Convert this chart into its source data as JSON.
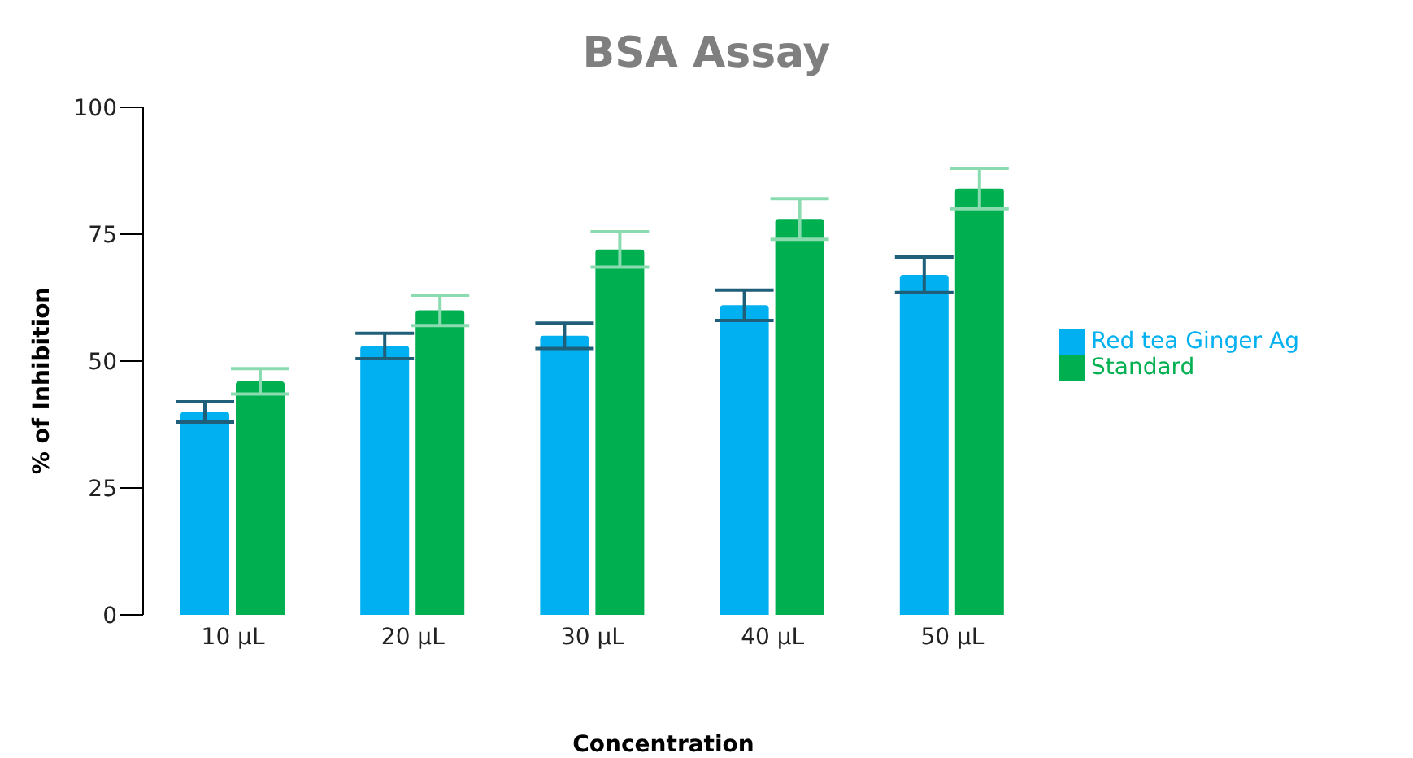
{
  "chart_data": {
    "type": "bar",
    "title": "BSA Assay",
    "xlabel": "Concentration",
    "ylabel": "% of Inhibition",
    "categories": [
      "10 µL",
      "20 µL",
      "30 µL",
      "40 µL",
      "50 µL"
    ],
    "series": [
      {
        "name": "Red tea Ginger Ag",
        "color": "#00b0f0",
        "values": [
          40,
          53,
          55,
          61,
          67
        ],
        "errors": [
          2,
          2.5,
          2.5,
          3,
          3.5
        ]
      },
      {
        "name": "Standard",
        "color": "#00b050",
        "values": [
          46,
          60,
          72,
          78,
          84
        ],
        "errors": [
          2.5,
          3,
          3.5,
          4,
          4
        ]
      }
    ],
    "ylim": [
      0,
      100
    ],
    "yticks": [
      0,
      25,
      50,
      75,
      100
    ],
    "grid": false,
    "legend": "right"
  }
}
